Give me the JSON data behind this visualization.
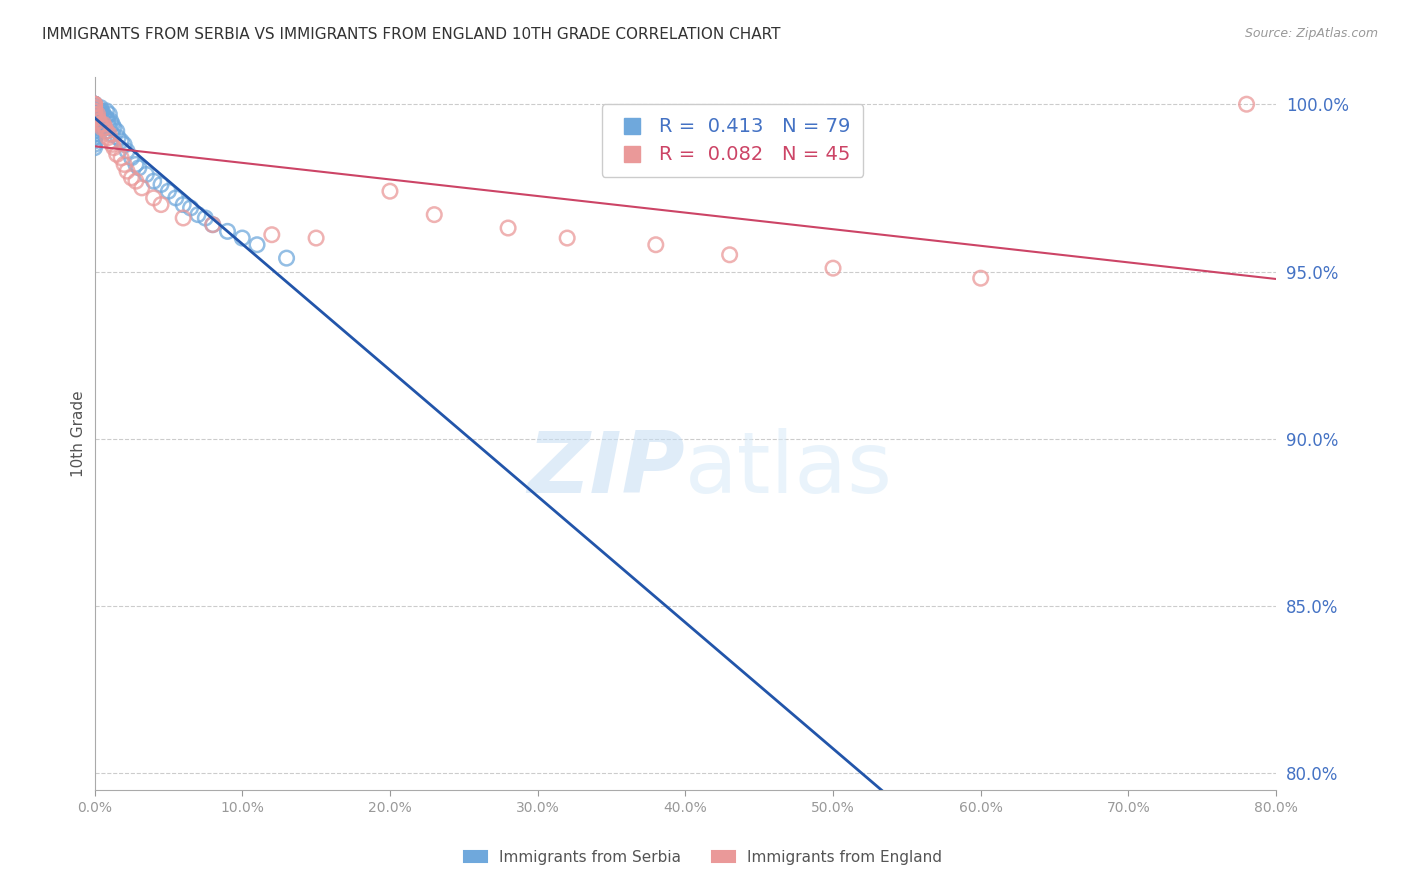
{
  "title": "IMMIGRANTS FROM SERBIA VS IMMIGRANTS FROM ENGLAND 10TH GRADE CORRELATION CHART",
  "source": "Source: ZipAtlas.com",
  "ylabel": "10th Grade",
  "xlim": [
    0.0,
    0.8
  ],
  "ylim": [
    0.795,
    1.008
  ],
  "yticks": [
    0.8,
    0.85,
    0.9,
    0.95,
    1.0
  ],
  "xticks": [
    0.0,
    0.1,
    0.2,
    0.3,
    0.4,
    0.5,
    0.6,
    0.7,
    0.8
  ],
  "serbia_color": "#6fa8dc",
  "serbia_line_color": "#2255aa",
  "england_color": "#ea9999",
  "england_line_color": "#cc4466",
  "serbia_R": 0.413,
  "serbia_N": 79,
  "england_R": 0.082,
  "england_N": 45,
  "watermark_zip": "ZIP",
  "watermark_atlas": "atlas",
  "serbia_x": [
    0.0,
    0.0,
    0.0,
    0.0,
    0.0,
    0.0,
    0.0,
    0.0,
    0.0,
    0.0,
    0.0,
    0.0,
    0.0,
    0.0,
    0.0,
    0.0,
    0.0,
    0.0,
    0.0,
    0.0,
    0.0,
    0.0,
    0.0,
    0.0,
    0.0,
    0.0,
    0.0,
    0.0,
    0.0,
    0.0,
    0.002,
    0.002,
    0.002,
    0.003,
    0.003,
    0.003,
    0.004,
    0.004,
    0.004,
    0.004,
    0.005,
    0.005,
    0.005,
    0.006,
    0.006,
    0.007,
    0.007,
    0.008,
    0.008,
    0.008,
    0.009,
    0.01,
    0.01,
    0.011,
    0.012,
    0.012,
    0.013,
    0.015,
    0.016,
    0.018,
    0.02,
    0.022,
    0.025,
    0.028,
    0.03,
    0.035,
    0.04,
    0.045,
    0.05,
    0.055,
    0.06,
    0.065,
    0.07,
    0.075,
    0.08,
    0.09,
    0.1,
    0.11,
    0.13
  ],
  "serbia_y": [
    1.0,
    1.0,
    1.0,
    1.0,
    1.0,
    0.999,
    0.999,
    0.999,
    0.998,
    0.998,
    0.998,
    0.997,
    0.997,
    0.997,
    0.996,
    0.996,
    0.995,
    0.995,
    0.994,
    0.993,
    0.993,
    0.992,
    0.992,
    0.991,
    0.991,
    0.99,
    0.99,
    0.989,
    0.988,
    0.987,
    0.997,
    0.996,
    0.994,
    0.998,
    0.997,
    0.995,
    0.999,
    0.998,
    0.997,
    0.993,
    0.998,
    0.996,
    0.993,
    0.997,
    0.994,
    0.996,
    0.993,
    0.998,
    0.996,
    0.992,
    0.995,
    0.997,
    0.993,
    0.995,
    0.994,
    0.991,
    0.993,
    0.992,
    0.99,
    0.989,
    0.988,
    0.986,
    0.984,
    0.982,
    0.981,
    0.979,
    0.977,
    0.976,
    0.974,
    0.972,
    0.97,
    0.969,
    0.967,
    0.966,
    0.964,
    0.962,
    0.96,
    0.958,
    0.954
  ],
  "england_x": [
    0.0,
    0.0,
    0.0,
    0.0,
    0.0,
    0.0,
    0.0,
    0.0,
    0.0,
    0.0,
    0.002,
    0.002,
    0.003,
    0.004,
    0.005,
    0.006,
    0.007,
    0.008,
    0.009,
    0.01,
    0.011,
    0.012,
    0.013,
    0.015,
    0.018,
    0.02,
    0.022,
    0.025,
    0.028,
    0.032,
    0.04,
    0.045,
    0.06,
    0.08,
    0.12,
    0.15,
    0.2,
    0.23,
    0.28,
    0.32,
    0.38,
    0.43,
    0.5,
    0.6,
    0.78
  ],
  "england_y": [
    1.0,
    1.0,
    1.0,
    0.999,
    0.999,
    0.998,
    0.998,
    0.997,
    0.997,
    0.996,
    0.997,
    0.996,
    0.995,
    0.994,
    0.993,
    0.994,
    0.993,
    0.992,
    0.99,
    0.991,
    0.989,
    0.988,
    0.987,
    0.985,
    0.984,
    0.982,
    0.98,
    0.978,
    0.977,
    0.975,
    0.972,
    0.97,
    0.966,
    0.964,
    0.961,
    0.96,
    0.974,
    0.967,
    0.963,
    0.96,
    0.958,
    0.955,
    0.951,
    0.948,
    1.0
  ]
}
